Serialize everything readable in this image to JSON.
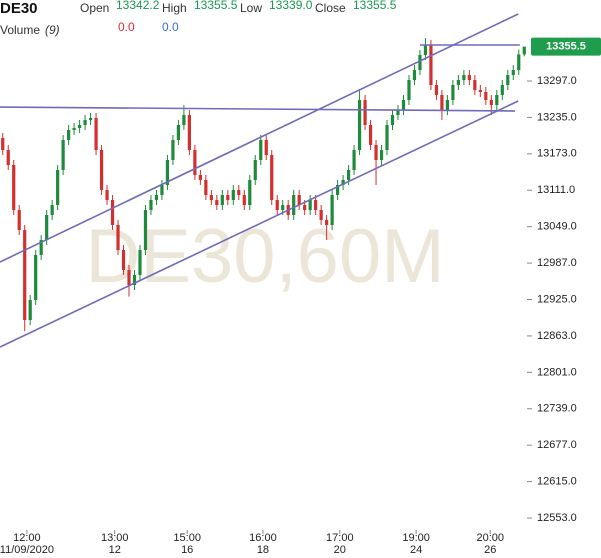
{
  "header": {
    "symbol": "DE30",
    "open_label": "Open",
    "open": "13342.2",
    "high_label": "High",
    "high": "13355.5",
    "low_label": "Low",
    "low": "13339.0",
    "close_label": "Close",
    "close": "13355.5",
    "volume_label": "Volume",
    "volume_period": "(9)",
    "volume_a": "0.0",
    "volume_b": "0.0"
  },
  "chart_data": {
    "type": "candlestick",
    "watermark": "DE30,60M",
    "up_color": "#1f8a3b",
    "down_color": "#d32f2f",
    "line_color": "#6f6bb8",
    "xlim": [
      0,
      96
    ],
    "ylim": [
      12532.6,
      13434.9
    ],
    "yticks": [
      {
        "value": 12553,
        "label": "12553.0"
      },
      {
        "value": 12615,
        "label": "12615.0"
      },
      {
        "value": 12677,
        "label": "12677.0"
      },
      {
        "value": 12739,
        "label": "12739.0"
      },
      {
        "value": 12801,
        "label": "12801.0"
      },
      {
        "value": 12863,
        "label": "12863.0"
      },
      {
        "value": 12925,
        "label": "12925.0"
      },
      {
        "value": 12987,
        "label": "12987.0"
      },
      {
        "value": 13049,
        "label": "13049.0"
      },
      {
        "value": 13111,
        "label": "13111.0"
      },
      {
        "value": 13173,
        "label": "13173.0"
      },
      {
        "value": 13235,
        "label": "13235.0"
      },
      {
        "value": 13297,
        "label": "13297.0"
      }
    ],
    "xticks": [
      {
        "value": 4.9,
        "label": "12:00"
      },
      {
        "value": 20.9,
        "label": "13:00"
      },
      {
        "value": 34.1,
        "label": "15:00"
      },
      {
        "value": 47.9,
        "label": "16:00"
      },
      {
        "value": 61.9,
        "label": "17:00"
      },
      {
        "value": 75.8,
        "label": "19:00"
      },
      {
        "value": 89.3,
        "label": "20:00"
      }
    ],
    "xtick_dates": [
      "11/09/2020",
      "12",
      "16",
      "18",
      "20",
      "24",
      "26"
    ],
    "price_tag": {
      "value": 13355.5,
      "label": "13355.5"
    },
    "open": [
      13200.0,
      13179.5,
      13154.0,
      13077.4,
      13043.3,
      12890.1,
      12924.2,
      13000.8,
      13026.3,
      13068.9,
      13085.9,
      13145.5,
      13196.6,
      13213.6,
      13217.0,
      13222.1,
      13230.6,
      13234.0,
      13179.5,
      13111.4,
      13094.4,
      13051.9,
      13009.3,
      12975.3,
      12949.7,
      12966.7,
      13009.3,
      13077.4,
      13094.4,
      13102.9,
      13120.0,
      13162.5,
      13196.6,
      13222.1,
      13239.1,
      13179.5,
      13137.0,
      13128.5,
      13102.9,
      13094.4,
      13085.9,
      13102.9,
      13094.4,
      13111.4,
      13102.9,
      13085.9,
      13128.5,
      13162.5,
      13196.6,
      13171.0,
      13094.4,
      13077.4,
      13085.9,
      13068.9,
      13102.9,
      13085.9,
      13077.4,
      13094.4,
      13077.4,
      13060.4,
      13051.9,
      13102.9,
      13120.0,
      13128.5,
      13145.5,
      13179.5,
      13264.7,
      13222.1,
      13188.1,
      13162.5,
      13179.5,
      13222.1,
      13239.1,
      13247.6,
      13264.7,
      13298.7,
      13315.7,
      13341.3,
      13358.3,
      13290.2,
      13273.2,
      13247.6,
      13264.7,
      13290.2,
      13298.7,
      13307.2,
      13298.7,
      13281.7,
      13278.3,
      13264.7,
      13256.1,
      13273.2,
      13290.2,
      13307.2,
      13315.7,
      13342.2
    ],
    "high": [
      13208.5,
      13188.0,
      13162.5,
      13085.9,
      13051.8,
      12932.7,
      13009.3,
      13034.8,
      13077.4,
      13094.4,
      13154.0,
      13205.1,
      13222.1,
      13225.5,
      13230.6,
      13239.1,
      13242.5,
      13242.5,
      13188.0,
      13119.9,
      13102.9,
      13060.4,
      13017.8,
      12983.8,
      12975.2,
      13017.8,
      13085.9,
      13102.9,
      13111.4,
      13128.5,
      13171.0,
      13205.1,
      13230.6,
      13256.0,
      13247.6,
      13188.0,
      13145.5,
      13137.0,
      13111.4,
      13102.9,
      13111.4,
      13111.4,
      13119.9,
      13119.9,
      13111.4,
      13137.0,
      13171.0,
      13205.1,
      13205.1,
      13179.5,
      13102.9,
      13094.4,
      13094.4,
      13111.4,
      13111.4,
      13094.4,
      13102.9,
      13102.9,
      13085.9,
      13068.9,
      13111.4,
      13128.5,
      13137.0,
      13154.0,
      13188.0,
      13281.7,
      13273.2,
      13230.6,
      13196.6,
      13188.0,
      13230.6,
      13247.6,
      13256.1,
      13273.2,
      13307.2,
      13324.2,
      13349.8,
      13370.0,
      13366.8,
      13298.7,
      13281.7,
      13273.2,
      13298.7,
      13307.2,
      13315.7,
      13315.7,
      13307.2,
      13290.2,
      13286.8,
      13273.2,
      13281.7,
      13298.7,
      13315.7,
      13324.2,
      13350.7,
      13355.5
    ],
    "low": [
      13171.0,
      13145.5,
      13068.9,
      13034.8,
      12871.0,
      12881.6,
      12915.7,
      12992.3,
      13017.8,
      13060.4,
      13077.4,
      13137.0,
      13188.1,
      13205.1,
      13208.5,
      13213.6,
      13222.1,
      13171.0,
      13102.9,
      13085.9,
      13043.4,
      13000.8,
      12966.8,
      12930.0,
      12941.2,
      12958.2,
      13000.8,
      13068.9,
      13085.9,
      13094.4,
      13111.5,
      13154.0,
      13188.1,
      13213.6,
      13171.0,
      13128.5,
      13120.0,
      13094.4,
      13085.9,
      13077.4,
      13077.4,
      13085.9,
      13085.9,
      13094.4,
      13077.4,
      13077.4,
      13120.0,
      13154.0,
      13162.5,
      13085.9,
      13068.9,
      13068.9,
      13060.4,
      13060.4,
      13077.4,
      13068.9,
      13068.9,
      13068.9,
      13051.9,
      13026.3,
      13043.4,
      13094.4,
      13111.5,
      13120.0,
      13137.0,
      13171.0,
      13213.6,
      13179.6,
      13120.0,
      13154.0,
      13171.0,
      13213.6,
      13230.6,
      13239.1,
      13256.2,
      13290.2,
      13307.2,
      13332.8,
      13281.7,
      13264.7,
      13230.6,
      13239.1,
      13256.2,
      13281.7,
      13290.2,
      13290.2,
      13273.2,
      13269.8,
      13256.2,
      13239.0,
      13247.6,
      13264.7,
      13281.7,
      13298.7,
      13307.2,
      13339.0
    ],
    "close": [
      13179.5,
      13154.0,
      13077.4,
      13043.3,
      12890.1,
      12924.2,
      13000.8,
      13026.3,
      13068.9,
      13085.9,
      13145.5,
      13196.6,
      13213.6,
      13217.0,
      13222.1,
      13230.6,
      13234.0,
      13179.5,
      13111.4,
      13094.4,
      13051.9,
      13009.3,
      12975.3,
      12949.7,
      12966.7,
      13009.3,
      13077.4,
      13094.4,
      13102.9,
      13120.0,
      13162.5,
      13196.6,
      13222.1,
      13239.1,
      13179.5,
      13137.0,
      13128.5,
      13102.9,
      13094.4,
      13085.9,
      13102.9,
      13094.4,
      13111.4,
      13102.9,
      13085.9,
      13128.5,
      13162.5,
      13196.6,
      13171.0,
      13094.4,
      13077.4,
      13085.9,
      13068.9,
      13102.9,
      13085.9,
      13077.4,
      13094.4,
      13077.4,
      13060.4,
      13051.9,
      13102.9,
      13120.0,
      13128.5,
      13145.5,
      13179.5,
      13264.7,
      13222.1,
      13188.1,
      13162.5,
      13179.5,
      13222.1,
      13239.1,
      13247.6,
      13264.7,
      13298.7,
      13315.7,
      13341.3,
      13358.3,
      13290.2,
      13273.2,
      13247.6,
      13264.7,
      13290.2,
      13298.7,
      13307.2,
      13298.7,
      13281.7,
      13278.3,
      13264.7,
      13256.1,
      13273.2,
      13290.2,
      13307.2,
      13315.7,
      13342.2,
      13355.5
    ],
    "trendlines": [
      {
        "x": [
          0,
          94.4
        ],
        "y": [
          12988.9,
          13411.1
        ]
      },
      {
        "x": [
          0,
          94.4
        ],
        "y": [
          12844.2,
          13263.0
        ]
      },
      {
        "x": [
          0,
          93.8
        ],
        "y": [
          13252.7,
          13245.9
        ]
      },
      {
        "x": [
          76.5,
          94.7
        ],
        "y": [
          13358.3,
          13358.3
        ]
      }
    ]
  }
}
